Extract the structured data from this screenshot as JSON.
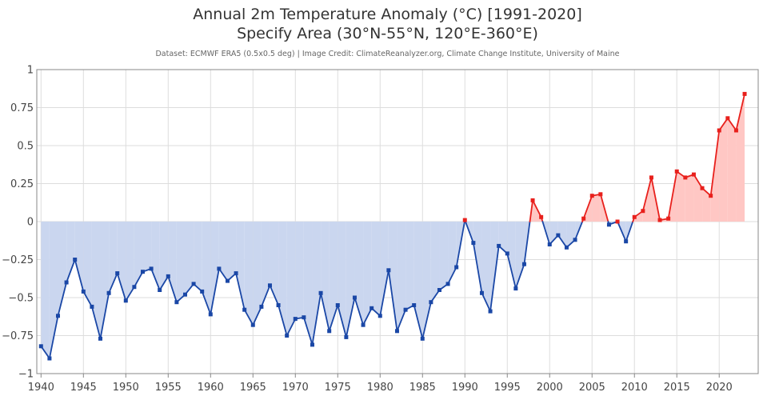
{
  "header": {
    "title_line1": "Annual 2m Temperature Anomaly (°C) [1991-2020]",
    "title_line2": "Specify Area (30°N-55°N, 120°E-360°E)",
    "credit": "Dataset: ECMWF ERA5 (0.5x0.5 deg) | Image Credit: ClimateReanalyzer.org, Climate Change Institute, University of Maine"
  },
  "colors": {
    "negative_line": "#1a47a6",
    "negative_fill": "#cad6ef",
    "positive_line": "#e8201c",
    "positive_fill": "#ffc7c4",
    "grid": "#dddddd",
    "axis": "#888888"
  },
  "chart_data": {
    "type": "area",
    "title": "Annual 2m Temperature Anomaly (°C) [1991-2020]",
    "subtitle": "Specify Area (30°N-55°N, 120°E-360°E)",
    "xlabel": "",
    "ylabel": "",
    "xlim": [
      1939.5,
      2024.6
    ],
    "ylim": [
      -1,
      1
    ],
    "x_ticks": [
      1940,
      1945,
      1950,
      1955,
      1960,
      1965,
      1970,
      1975,
      1980,
      1985,
      1990,
      1995,
      2000,
      2005,
      2010,
      2015,
      2020
    ],
    "y_ticks": [
      -1,
      -0.75,
      -0.5,
      -0.25,
      0,
      0.25,
      0.5,
      0.75,
      1
    ],
    "y_tick_labels": [
      "−1",
      "−0.75",
      "−0.5",
      "−0.25",
      "0",
      "0.25",
      "0.5",
      "0.75",
      "1"
    ],
    "grid": true,
    "legend": "none",
    "series": [
      {
        "x": [
          1940,
          1941,
          1942,
          1943,
          1944,
          1945,
          1946,
          1947,
          1948,
          1949,
          1950,
          1951,
          1952,
          1953,
          1954,
          1955,
          1956,
          1957,
          1958,
          1959,
          1960,
          1961,
          1962,
          1963,
          1964,
          1965,
          1966,
          1967,
          1968,
          1969,
          1970,
          1971,
          1972,
          1973,
          1974,
          1975,
          1976,
          1977,
          1978,
          1979,
          1980,
          1981,
          1982,
          1983,
          1984,
          1985,
          1986,
          1987,
          1988,
          1989,
          1990,
          1991,
          1992,
          1993,
          1994,
          1995,
          1996,
          1997,
          1998,
          1999,
          2000,
          2001,
          2002,
          2003,
          2004,
          2005,
          2006,
          2007,
          2008,
          2009,
          2010,
          2011,
          2012,
          2013,
          2014,
          2015,
          2016,
          2017,
          2018,
          2019,
          2020,
          2021,
          2022,
          2023
        ],
        "values": [
          -0.82,
          -0.9,
          -0.62,
          -0.4,
          -0.25,
          -0.46,
          -0.56,
          -0.77,
          -0.47,
          -0.34,
          -0.52,
          -0.43,
          -0.33,
          -0.31,
          -0.45,
          -0.36,
          -0.53,
          -0.48,
          -0.41,
          -0.46,
          -0.61,
          -0.31,
          -0.39,
          -0.34,
          -0.58,
          -0.68,
          -0.56,
          -0.42,
          -0.55,
          -0.75,
          -0.64,
          -0.63,
          -0.81,
          -0.47,
          -0.72,
          -0.55,
          -0.76,
          -0.5,
          -0.68,
          -0.57,
          -0.62,
          -0.32,
          -0.72,
          -0.58,
          -0.55,
          -0.77,
          -0.53,
          -0.45,
          -0.41,
          -0.3,
          0.01,
          -0.14,
          -0.47,
          -0.59,
          -0.16,
          -0.21,
          -0.44,
          -0.28,
          0.14,
          0.03,
          -0.15,
          -0.09,
          -0.17,
          -0.12,
          0.02,
          0.17,
          0.18,
          -0.02,
          0.0,
          -0.13,
          0.03,
          0.07,
          0.29,
          0.01,
          0.02,
          0.33,
          0.29,
          0.31,
          0.22,
          0.17,
          0.6,
          0.68,
          0.6,
          0.84
        ]
      }
    ]
  }
}
